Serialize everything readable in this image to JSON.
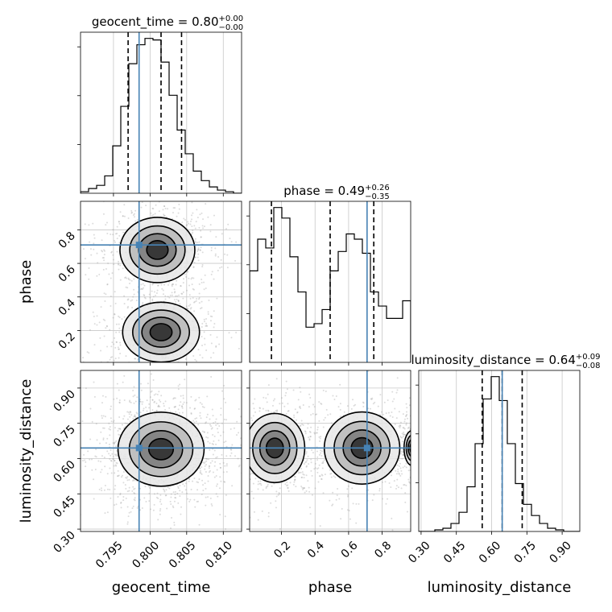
{
  "colors": {
    "truth": "#4682b4",
    "hist": "#000000",
    "grid": "#c8c8c8",
    "samples": "#9a9a9a"
  },
  "chart_data": {
    "type": "corner",
    "parameters": [
      "geocent_time",
      "phase",
      "luminosity_distance"
    ],
    "truths": {
      "geocent_time": 0.7985,
      "phase": 0.71,
      "luminosity_distance": 0.645
    },
    "grid": true,
    "axes": {
      "geocent_time": {
        "label": "geocent_time",
        "range": [
          0.7905,
          0.8125
        ],
        "ticks": [
          0.795,
          0.8,
          0.805,
          0.81
        ],
        "tick_labels": [
          "0.795",
          "0.800",
          "0.805",
          "0.810"
        ]
      },
      "phase": {
        "label": "phase",
        "range": [
          0.01,
          0.97
        ],
        "ticks": [
          0.2,
          0.4,
          0.6,
          0.8
        ],
        "tick_labels": [
          "0.2",
          "0.4",
          "0.6",
          "0.8"
        ]
      },
      "luminosity_distance": {
        "label": "luminosity_distance",
        "range": [
          0.29,
          0.975
        ],
        "ticks": [
          0.3,
          0.45,
          0.6,
          0.75,
          0.9
        ],
        "tick_labels": [
          "0.30",
          "0.45",
          "0.60",
          "0.75",
          "0.90"
        ]
      }
    },
    "marginals": [
      {
        "parameter": "geocent_time",
        "title": {
          "name": "geocent_time",
          "median": "0.80",
          "plus": "+0.00",
          "minus": "−0.00"
        },
        "quantiles": [
          0.797,
          0.8015,
          0.8043
        ],
        "edges_range": [
          0.7905,
          0.8125
        ],
        "counts": [
          1,
          3,
          5,
          11,
          30,
          55,
          82,
          94,
          98,
          97,
          83,
          62,
          40,
          25,
          14,
          8,
          4,
          2,
          1,
          0
        ]
      },
      {
        "parameter": "phase",
        "title": {
          "name": "phase",
          "median": "0.49",
          "plus": "+0.26",
          "minus": "−0.35"
        },
        "quantiles": [
          0.14,
          0.49,
          0.75
        ],
        "edges_range": [
          0.01,
          0.97
        ],
        "counts": [
          52,
          70,
          65,
          88,
          82,
          60,
          40,
          20,
          22,
          30,
          52,
          63,
          73,
          70,
          62,
          40,
          32,
          25,
          25,
          35
        ]
      },
      {
        "parameter": "luminosity_distance",
        "title": {
          "name": "luminosity_distance",
          "median": "0.64",
          "plus": "+0.09",
          "minus": "−0.08"
        },
        "quantiles": [
          0.56,
          0.645,
          0.73
        ],
        "edges_range": [
          0.29,
          0.975
        ],
        "counts": [
          0,
          0,
          1,
          2,
          5,
          12,
          28,
          55,
          83,
          97,
          82,
          55,
          30,
          17,
          10,
          5,
          2,
          1,
          0,
          0
        ]
      }
    ],
    "joint": [
      {
        "x": "geocent_time",
        "y": "phase",
        "modes": [
          {
            "mx": 0.8015,
            "my": 0.19,
            "sx": 0.0025,
            "sy": 0.085,
            "w": 1.0
          },
          {
            "mx": 0.801,
            "my": 0.68,
            "sx": 0.0025,
            "sy": 0.095,
            "w": 0.95
          }
        ]
      },
      {
        "x": "geocent_time",
        "y": "luminosity_distance",
        "modes": [
          {
            "mx": 0.8015,
            "my": 0.64,
            "sx": 0.0028,
            "sy": 0.075,
            "w": 1.0
          }
        ]
      },
      {
        "x": "phase",
        "y": "luminosity_distance",
        "modes": [
          {
            "mx": 0.16,
            "my": 0.645,
            "sx": 0.085,
            "sy": 0.07,
            "w": 1.0
          },
          {
            "mx": 0.68,
            "my": 0.645,
            "sx": 0.11,
            "sy": 0.075,
            "w": 0.95
          },
          {
            "mx": 0.98,
            "my": 0.645,
            "sx": 0.04,
            "sy": 0.06,
            "w": 0.35
          }
        ]
      }
    ]
  }
}
